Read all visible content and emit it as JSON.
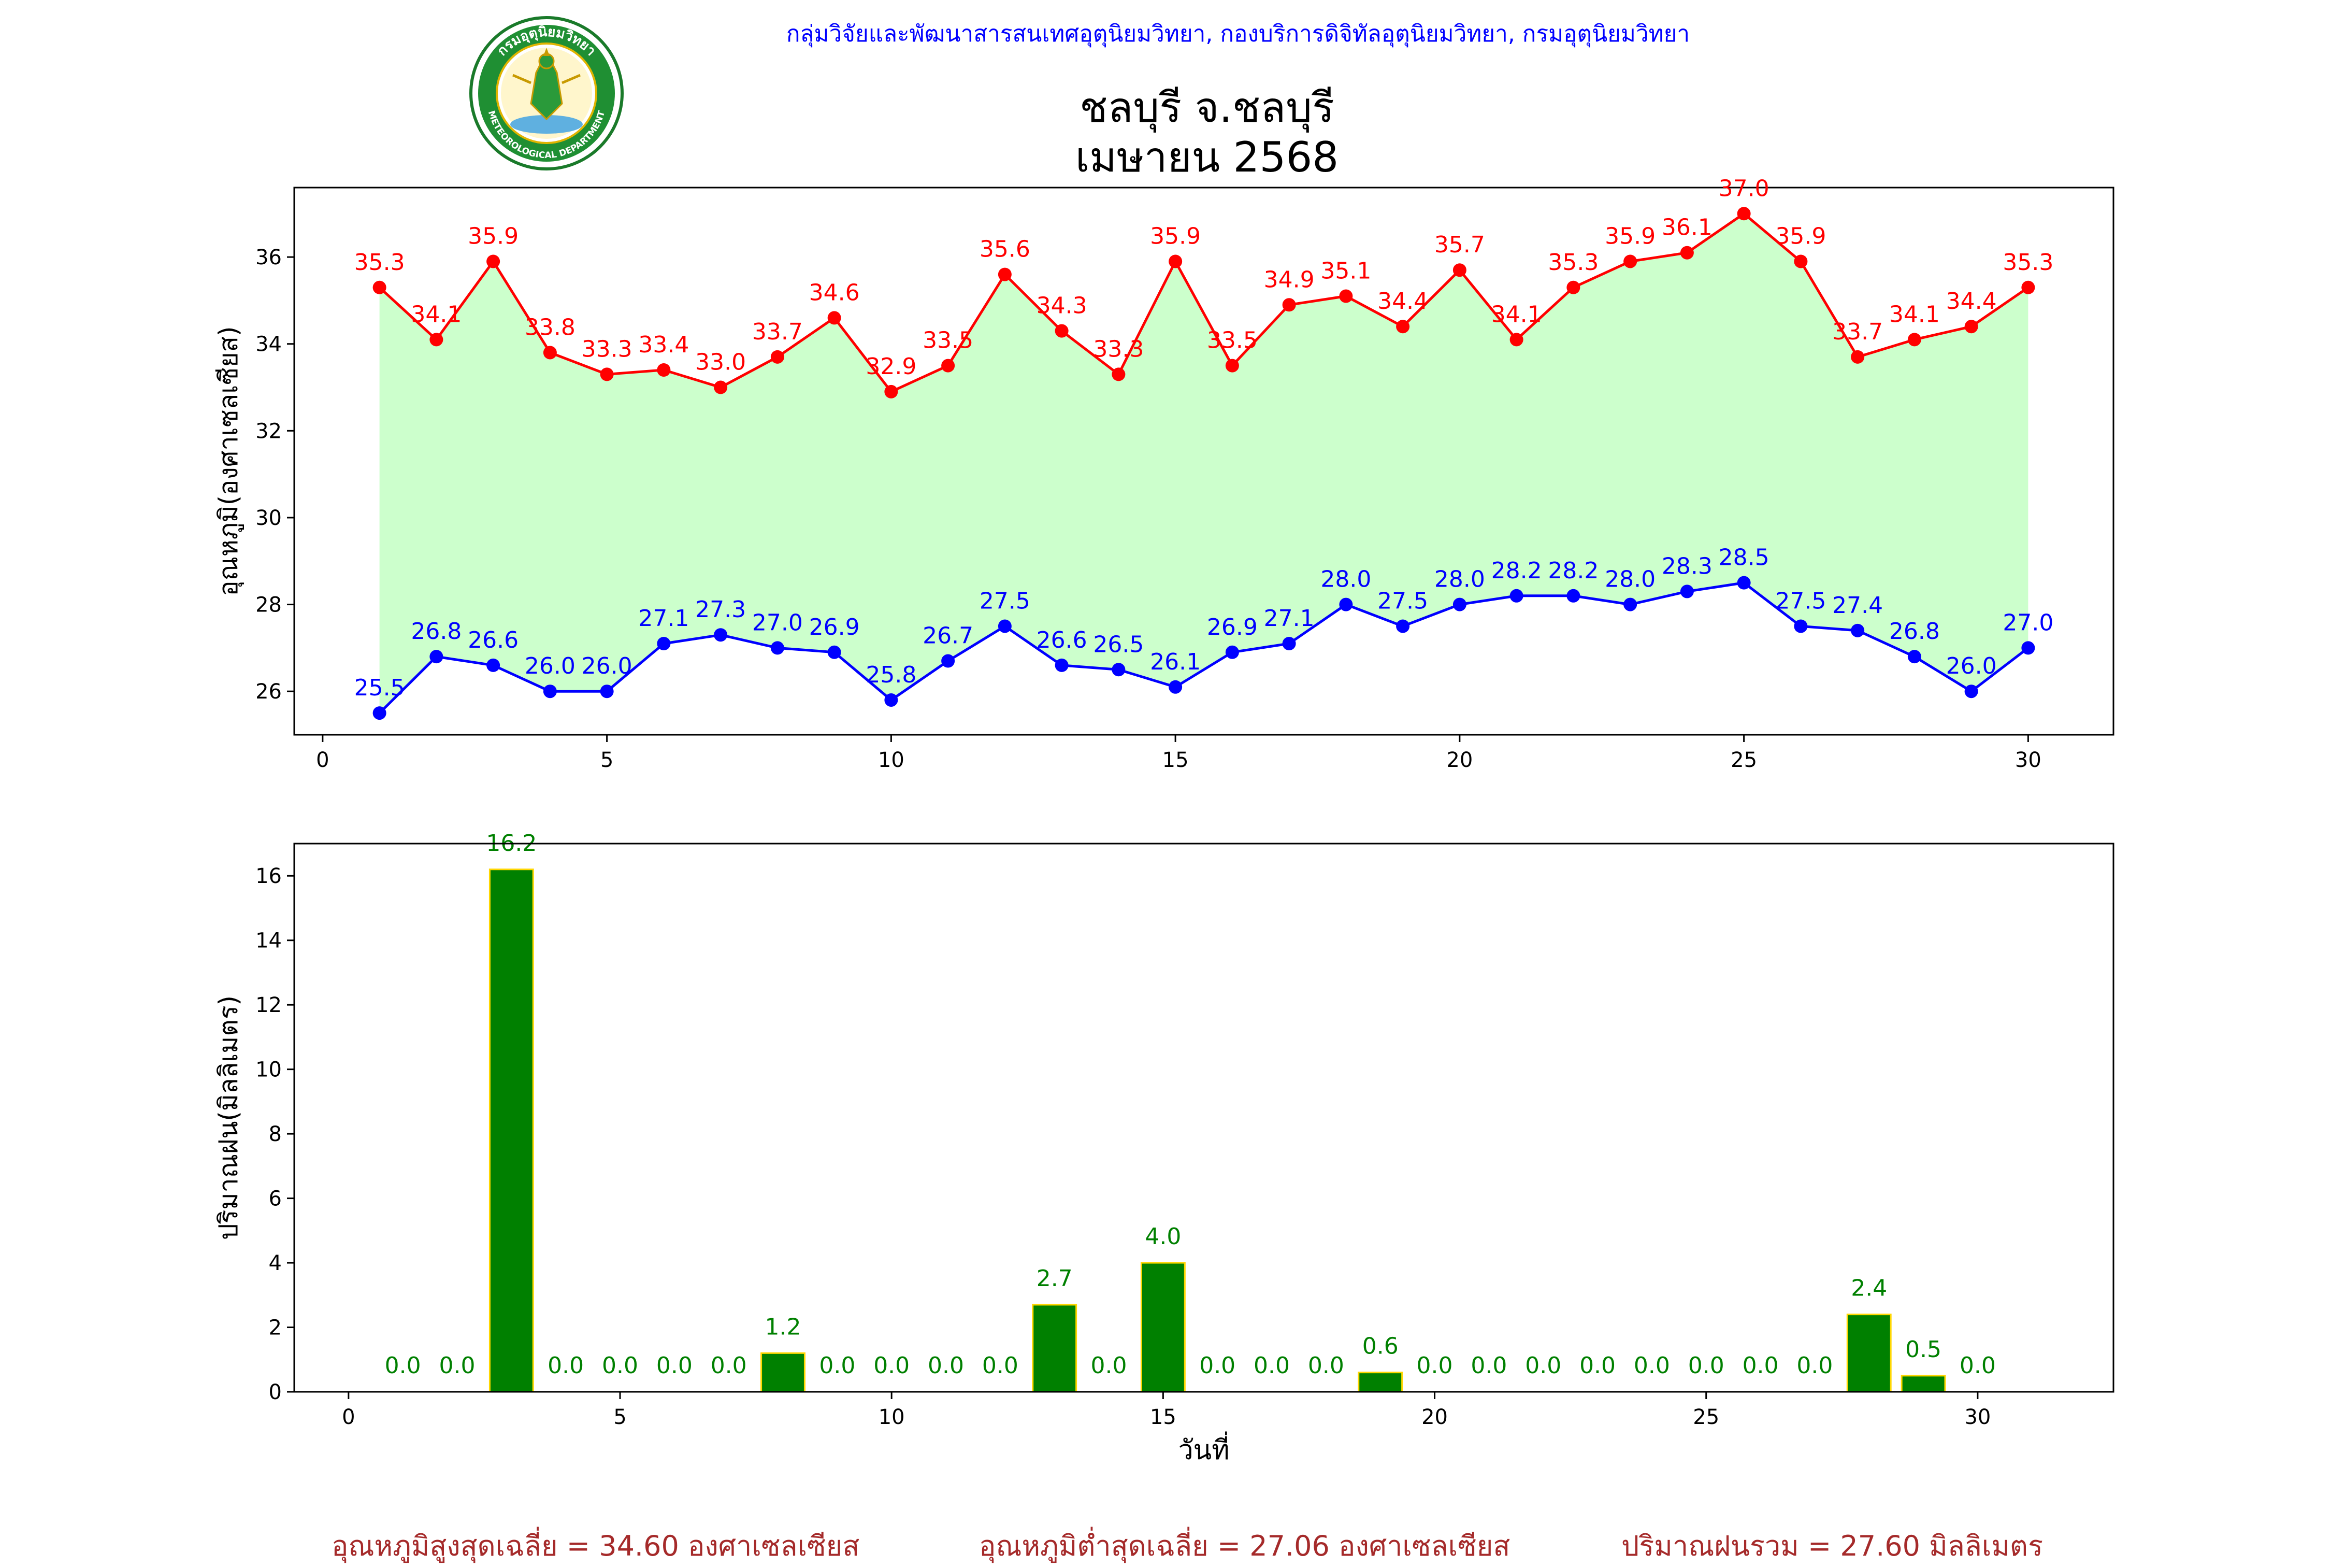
{
  "header": {
    "agency": "กลุ่มวิจัยและพัฒนาสารสนเทศอุตุนิยมวิทยา, กองบริการดิจิทัลอุตุนิยมวิทยา, กรมอุตุนิยมวิทยา",
    "logo_text_top": "กรมอุตุนิยมวิทยา",
    "logo_text_bottom": "METEOROLOGICAL DEPARTMENT",
    "title_line1": "ชลบุรี จ.ชลบุรี",
    "title_line2": "เมษายน 2568"
  },
  "summary": {
    "max_avg": "อุณหภูมิสูงสุดเฉลี่ย = 34.60 องศาเซลเซียส",
    "min_avg": "อุณหภูมิต่ำสุดเฉลี่ย = 27.06 องศาเซลเซียส",
    "rain_total": "ปริมาณฝนรวม = 27.60 มิลลิเมตร"
  },
  "colors": {
    "max_line": "#ff0000",
    "min_line": "#0000ff",
    "band_fill": "#ccffcc",
    "rain_bar": "#008000",
    "rain_edge": "#ffd700",
    "rain_label": "#008000",
    "summary_text": "#a52a2a"
  },
  "chart_data": [
    {
      "type": "line",
      "ylabel": "อุณหภูมิ(องศาเซลเซียส)",
      "xlim": [
        -0.5,
        31.5
      ],
      "ylim": [
        25,
        37.6
      ],
      "xticks": [
        0,
        5,
        10,
        15,
        20,
        25,
        30
      ],
      "yticks": [
        26,
        28,
        30,
        32,
        34,
        36
      ],
      "fill_between": true,
      "x": [
        1,
        2,
        3,
        4,
        5,
        6,
        7,
        8,
        9,
        10,
        11,
        12,
        13,
        14,
        15,
        16,
        17,
        18,
        19,
        20,
        21,
        22,
        23,
        24,
        25,
        26,
        27,
        28,
        29,
        30
      ],
      "series": [
        {
          "values": [
            35.3,
            34.1,
            35.9,
            33.8,
            33.3,
            33.4,
            33.0,
            33.7,
            34.6,
            32.9,
            33.5,
            35.6,
            34.3,
            33.3,
            35.9,
            33.5,
            34.9,
            35.1,
            34.4,
            35.7,
            34.1,
            35.3,
            35.9,
            36.1,
            37.0,
            35.9,
            33.7,
            34.1,
            34.4,
            35.3
          ]
        },
        {
          "values": [
            25.5,
            26.8,
            26.6,
            26.0,
            26.0,
            27.1,
            27.3,
            27.0,
            26.9,
            25.8,
            26.7,
            27.5,
            26.6,
            26.5,
            26.1,
            26.9,
            27.1,
            28.0,
            27.5,
            28.0,
            28.2,
            28.2,
            28.0,
            28.3,
            28.5,
            27.5,
            27.4,
            26.8,
            26.0,
            27.0
          ]
        }
      ]
    },
    {
      "type": "bar",
      "xlabel": "วันที่",
      "ylabel": "ปริมาณฝน(มิลลิเมตร)",
      "xlim": [
        -1,
        32.5
      ],
      "ylim": [
        0,
        17
      ],
      "xticks": [
        0,
        5,
        10,
        15,
        20,
        25,
        30
      ],
      "yticks": [
        0,
        2,
        4,
        6,
        8,
        10,
        12,
        14,
        16
      ],
      "x": [
        1,
        2,
        3,
        4,
        5,
        6,
        7,
        8,
        9,
        10,
        11,
        12,
        13,
        14,
        15,
        16,
        17,
        18,
        19,
        20,
        21,
        22,
        23,
        24,
        25,
        26,
        27,
        28,
        29,
        30
      ],
      "values": [
        0.0,
        0.0,
        16.2,
        0.0,
        0.0,
        0.0,
        0.0,
        1.2,
        0.0,
        0.0,
        0.0,
        0.0,
        2.7,
        0.0,
        4.0,
        0.0,
        0.0,
        0.0,
        0.6,
        0.0,
        0.0,
        0.0,
        0.0,
        0.0,
        0.0,
        0.0,
        0.0,
        2.4,
        0.5,
        0.0
      ]
    }
  ]
}
